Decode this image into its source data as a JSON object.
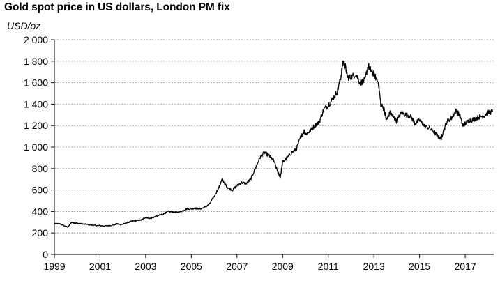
{
  "chart_data": {
    "type": "line",
    "title": "Gold spot price in US dollars, London PM fix",
    "ylabel": "USD/oz",
    "xlabel": "",
    "xlim": [
      1999,
      2018.25
    ],
    "ylim": [
      0,
      2000
    ],
    "grid": "horizontal dashed",
    "legend": "none",
    "line_color": "#000000",
    "x_ticks": [
      "1999",
      "2001",
      "2003",
      "2005",
      "2007",
      "2009",
      "2011",
      "2013",
      "2015",
      "2017"
    ],
    "y_ticks": [
      "0",
      "200",
      "400",
      "600",
      "800",
      "1 000",
      "1 200",
      "1 400",
      "1 600",
      "1 800",
      "2 000"
    ],
    "series": [
      {
        "name": "",
        "x": [
          1999.0,
          1999.25,
          1999.5,
          1999.6,
          1999.75,
          1999.85,
          2000.0,
          2000.2,
          2000.4,
          2000.6,
          2000.8,
          2001.0,
          2001.2,
          2001.4,
          2001.6,
          2001.75,
          2001.9,
          2002.0,
          2002.2,
          2002.4,
          2002.6,
          2002.8,
          2003.0,
          2003.2,
          2003.4,
          2003.6,
          2003.8,
          2004.0,
          2004.2,
          2004.4,
          2004.6,
          2004.8,
          2005.0,
          2005.2,
          2005.4,
          2005.6,
          2005.8,
          2006.0,
          2006.2,
          2006.35,
          2006.5,
          2006.6,
          2006.8,
          2007.0,
          2007.2,
          2007.4,
          2007.6,
          2007.8,
          2008.0,
          2008.2,
          2008.4,
          2008.6,
          2008.8,
          2008.9,
          2009.0,
          2009.2,
          2009.4,
          2009.6,
          2009.8,
          2009.95,
          2010.0,
          2010.2,
          2010.4,
          2010.6,
          2010.8,
          2011.0,
          2011.2,
          2011.4,
          2011.55,
          2011.65,
          2011.75,
          2011.85,
          2012.0,
          2012.2,
          2012.4,
          2012.6,
          2012.75,
          2012.9,
          2013.0,
          2013.2,
          2013.3,
          2013.45,
          2013.55,
          2013.7,
          2013.85,
          2014.0,
          2014.2,
          2014.4,
          2014.6,
          2014.8,
          2015.0,
          2015.2,
          2015.4,
          2015.6,
          2015.8,
          2015.95,
          2016.0,
          2016.2,
          2016.4,
          2016.6,
          2016.75,
          2016.9,
          2017.0,
          2017.2,
          2017.4,
          2017.6,
          2017.8,
          2018.0,
          2018.2
        ],
        "y": [
          287,
          285,
          260,
          255,
          300,
          295,
          290,
          285,
          280,
          275,
          270,
          268,
          265,
          268,
          275,
          285,
          278,
          282,
          295,
          310,
          315,
          320,
          345,
          335,
          350,
          365,
          380,
          400,
          395,
          390,
          405,
          425,
          425,
          430,
          425,
          440,
          470,
          540,
          620,
          700,
          650,
          620,
          600,
          640,
          670,
          660,
          700,
          800,
          900,
          950,
          920,
          880,
          760,
          720,
          860,
          900,
          950,
          980,
          1100,
          1150,
          1120,
          1150,
          1200,
          1230,
          1350,
          1390,
          1450,
          1520,
          1650,
          1800,
          1750,
          1650,
          1650,
          1680,
          1600,
          1620,
          1760,
          1700,
          1680,
          1600,
          1400,
          1350,
          1250,
          1320,
          1280,
          1240,
          1320,
          1300,
          1290,
          1220,
          1250,
          1200,
          1180,
          1150,
          1100,
          1080,
          1120,
          1240,
          1270,
          1340,
          1300,
          1200,
          1220,
          1250,
          1260,
          1280,
          1290,
          1320,
          1330
        ]
      }
    ]
  }
}
